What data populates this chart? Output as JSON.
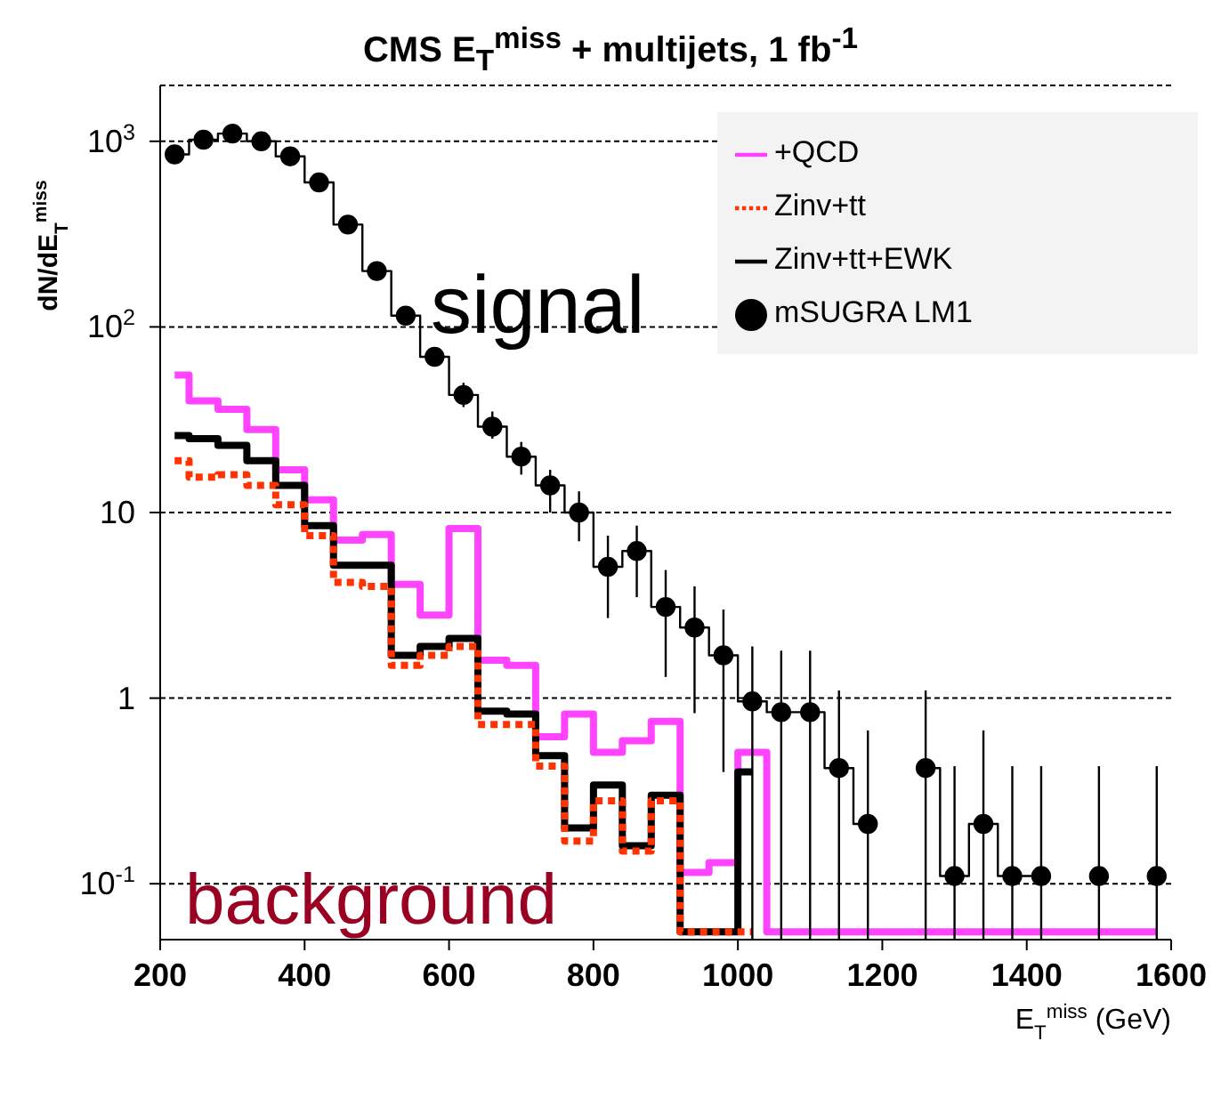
{
  "chart_data": {
    "type": "step",
    "title": "CMS E$_{T}$$^{miss}$ + multijets, 1 fb$^{-1}$",
    "xlabel": "E$_{T}$$^{miss}$ (GeV)",
    "ylabel": "dN/dE$_{T}$$^{miss}$",
    "x": [
      220,
      260,
      300,
      340,
      380,
      420,
      460,
      500,
      540,
      580,
      620,
      660,
      700,
      740,
      780,
      820,
      860,
      900,
      940,
      980,
      1020,
      1060,
      1100,
      1140,
      1180,
      1220,
      1260,
      1300,
      1340,
      1380,
      1420,
      1460,
      1500,
      1540,
      1580
    ],
    "xlim": [
      200,
      1600
    ],
    "xticks": [
      200,
      400,
      600,
      800,
      1000,
      1200,
      1400,
      1600
    ],
    "ylim": [
      0.05,
      2000
    ],
    "yticks": [
      {
        "value": 0.1,
        "label": "10$^{-1}$"
      },
      1,
      10,
      {
        "value": 100,
        "label": "10$^{2}$"
      },
      {
        "value": 1000,
        "label": "10$^{3}$"
      }
    ],
    "log": "y",
    "grid": "y",
    "legend": "top right",
    "series": [
      {
        "name": "mSUGRA LM1",
        "color": "#000000",
        "marker": "circle",
        "values": [
          850,
          1020,
          1100,
          1000,
          830,
          600,
          356,
          200,
          115,
          69,
          43,
          29,
          20,
          14,
          10,
          5.1,
          6.2,
          3.1,
          2.4,
          1.7,
          0.96,
          0.84,
          0.84,
          0.42,
          0.21,
          null,
          0.42,
          0.11,
          0.21,
          0.11,
          0.11,
          null,
          0.11,
          null,
          0.11
        ],
        "errors": [
          null,
          null,
          null,
          null,
          null,
          null,
          null,
          null,
          null,
          null,
          [
            37,
            50
          ],
          [
            25,
            35
          ],
          [
            16,
            24
          ],
          [
            10,
            17
          ],
          [
            7,
            13
          ],
          [
            2.7,
            7.5
          ],
          [
            3.5,
            8.5
          ],
          [
            1.3,
            4.9
          ],
          [
            0.83,
            4
          ],
          [
            0.4,
            3
          ],
          [
            0.05,
            1.9
          ],
          [
            0.05,
            1.8
          ],
          [
            0.05,
            1.8
          ],
          [
            0.05,
            1.1
          ],
          [
            0.05,
            0.67
          ],
          null,
          [
            0.05,
            1.1
          ],
          [
            0.05,
            0.43
          ],
          [
            0.05,
            0.67
          ],
          [
            0.05,
            0.43
          ],
          [
            0.05,
            0.43
          ],
          null,
          [
            0.05,
            0.43
          ],
          null,
          [
            0.05,
            0.43
          ]
        ]
      },
      {
        "name": "Zinv+tt",
        "color": "#ff3300",
        "line_style": "dotted",
        "values": [
          19,
          15.5,
          16,
          14,
          11,
          7.5,
          4.2,
          4.0,
          1.5,
          1.7,
          1.9,
          0.72,
          0.72,
          0.43,
          0.17,
          0.28,
          0.15,
          0.28,
          0.055,
          0.055,
          0.055,
          null,
          null,
          null,
          null,
          null,
          null,
          null,
          null,
          null,
          null,
          null,
          null,
          null,
          null
        ]
      },
      {
        "name": "Zinv+tt+EWK",
        "color": "#000000",
        "values": [
          26,
          25,
          23,
          19,
          14,
          8.5,
          5.2,
          5.2,
          1.7,
          1.9,
          2.1,
          0.85,
          0.82,
          0.49,
          0.2,
          0.34,
          0.16,
          0.3,
          0.055,
          0.055,
          0.4,
          null,
          null,
          null,
          null,
          null,
          null,
          null,
          null,
          null,
          null,
          null,
          null,
          null,
          null
        ]
      },
      {
        "name": "+QCD",
        "color": "#ff44ff",
        "values": [
          55,
          40,
          36,
          28,
          17,
          11.7,
          7.1,
          7.6,
          4.1,
          2.8,
          8.2,
          1.6,
          1.5,
          0.62,
          0.82,
          0.51,
          0.59,
          0.75,
          0.115,
          0.13,
          0.51,
          0.055,
          0.055,
          0.055,
          0.055,
          0.055,
          0.055,
          0.055,
          0.055,
          0.055,
          0.055,
          0.055,
          0.055,
          0.055,
          0.055
        ]
      }
    ],
    "annotations": [
      "signal",
      "background"
    ]
  }
}
